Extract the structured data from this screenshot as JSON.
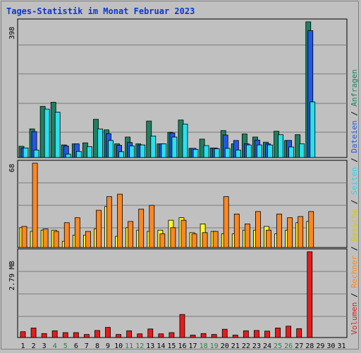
{
  "title": "Tages-Statistik im Monat Februar 2023",
  "colors": {
    "anfragen": "#1e8060",
    "dateien": "#2457e8",
    "seiten": "#27e0f0",
    "besuche": "#fff82a",
    "rechner": "#ff8722",
    "volumen": "#e81b1b",
    "weekend_day": "#1a8a3a",
    "day": "#000000",
    "grid": "#7a7a7a",
    "plot_bg": "#c0c0c0"
  },
  "legend": [
    {
      "label": "Volumen",
      "color": "#e81b1b"
    },
    {
      "label": " / ",
      "color": "#000000"
    },
    {
      "label": "Rechner",
      "color": "#ff8722"
    },
    {
      "label": " / ",
      "color": "#000000"
    },
    {
      "label": "Besuche",
      "color": "#d8c800"
    },
    {
      "label": " / ",
      "color": "#000000"
    },
    {
      "label": "Seiten",
      "color": "#27d8ef"
    },
    {
      "label": " / ",
      "color": "#000000"
    },
    {
      "label": "Dateien",
      "color": "#2457e8"
    },
    {
      "label": " / ",
      "color": "#000000"
    },
    {
      "label": "Anfragen",
      "color": "#1e8060"
    }
  ],
  "chart_data": [
    {
      "type": "bar",
      "panel": "top",
      "ylabel": "398",
      "ymax": 398,
      "categories": [
        "1",
        "2",
        "3",
        "4",
        "5",
        "6",
        "7",
        "8",
        "9",
        "10",
        "11",
        "12",
        "13",
        "14",
        "15",
        "16",
        "17",
        "18",
        "19",
        "20",
        "21",
        "22",
        "23",
        "24",
        "25",
        "26",
        "27",
        "28",
        "29",
        "30",
        "31"
      ],
      "series": [
        {
          "name": "Anfragen",
          "values": [
            33,
            84,
            150,
            162,
            37,
            40,
            43,
            112,
            81,
            40,
            60,
            40,
            107,
            40,
            74,
            110,
            27,
            54,
            28,
            79,
            40,
            69,
            60,
            45,
            77,
            50,
            67,
            398,
            0,
            0,
            0
          ]
        },
        {
          "name": "Dateien",
          "values": [
            28,
            76,
            0,
            0,
            34,
            40,
            0,
            0,
            70,
            36,
            44,
            37,
            0,
            40,
            72,
            0,
            27,
            0,
            28,
            66,
            50,
            40,
            51,
            40,
            0,
            50,
            0,
            372,
            0,
            0,
            0
          ]
        },
        {
          "name": "Seiten",
          "values": [
            28,
            22,
            142,
            133,
            10,
            18,
            32,
            84,
            50,
            17,
            34,
            37,
            63,
            40,
            60,
            98,
            24,
            35,
            26,
            27,
            22,
            37,
            37,
            37,
            67,
            31,
            40,
            163,
            0,
            0,
            0
          ]
        }
      ]
    },
    {
      "type": "bar",
      "panel": "middle",
      "ylabel": "68",
      "ymax": 68,
      "categories": [
        "1",
        "2",
        "3",
        "4",
        "5",
        "6",
        "7",
        "8",
        "9",
        "10",
        "11",
        "12",
        "13",
        "14",
        "15",
        "16",
        "17",
        "18",
        "19",
        "20",
        "21",
        "22",
        "23",
        "24",
        "25",
        "26",
        "27",
        "28",
        "29",
        "30",
        "31"
      ],
      "series": [
        {
          "name": "Besuche",
          "values": [
            16,
            13,
            14,
            14,
            5,
            10,
            10,
            15,
            33,
            9,
            16,
            14,
            13,
            14,
            22,
            24,
            12,
            19,
            13,
            11,
            11,
            14,
            14,
            17,
            11,
            14,
            20,
            21,
            0,
            0,
            0
          ]
        },
        {
          "name": "Rechner",
          "values": [
            17,
            68,
            15,
            13,
            20,
            24,
            13,
            30,
            41,
            43,
            21,
            31,
            34,
            11,
            16,
            22,
            11,
            12,
            13,
            41,
            27,
            19,
            29,
            14,
            27,
            24,
            25,
            29,
            0,
            0,
            0
          ]
        }
      ]
    },
    {
      "type": "bar",
      "panel": "bottom",
      "ylabel": "2.79 MB",
      "ymax": 2.79,
      "unit": "MB",
      "categories": [
        "1",
        "2",
        "3",
        "4",
        "5",
        "6",
        "7",
        "8",
        "9",
        "10",
        "11",
        "12",
        "13",
        "14",
        "15",
        "16",
        "17",
        "18",
        "19",
        "20",
        "21",
        "22",
        "23",
        "24",
        "25",
        "26",
        "27",
        "28",
        "29",
        "30",
        "31"
      ],
      "series": [
        {
          "name": "Volumen",
          "values": [
            0.19,
            0.31,
            0.13,
            0.22,
            0.16,
            0.16,
            0.1,
            0.23,
            0.33,
            0.1,
            0.22,
            0.12,
            0.28,
            0.12,
            0.16,
            0.75,
            0.08,
            0.13,
            0.1,
            0.27,
            0.08,
            0.22,
            0.23,
            0.21,
            0.31,
            0.37,
            0.29,
            2.79,
            0,
            0,
            0
          ]
        }
      ]
    }
  ],
  "days": [
    "1",
    "2",
    "3",
    "4",
    "5",
    "6",
    "7",
    "8",
    "9",
    "10",
    "11",
    "12",
    "13",
    "14",
    "15",
    "16",
    "17",
    "18",
    "19",
    "20",
    "21",
    "22",
    "23",
    "24",
    "25",
    "26",
    "27",
    "28",
    "29",
    "30",
    "31"
  ],
  "weekend_days": [
    "4",
    "5",
    "11",
    "12",
    "18",
    "19",
    "25",
    "26"
  ]
}
